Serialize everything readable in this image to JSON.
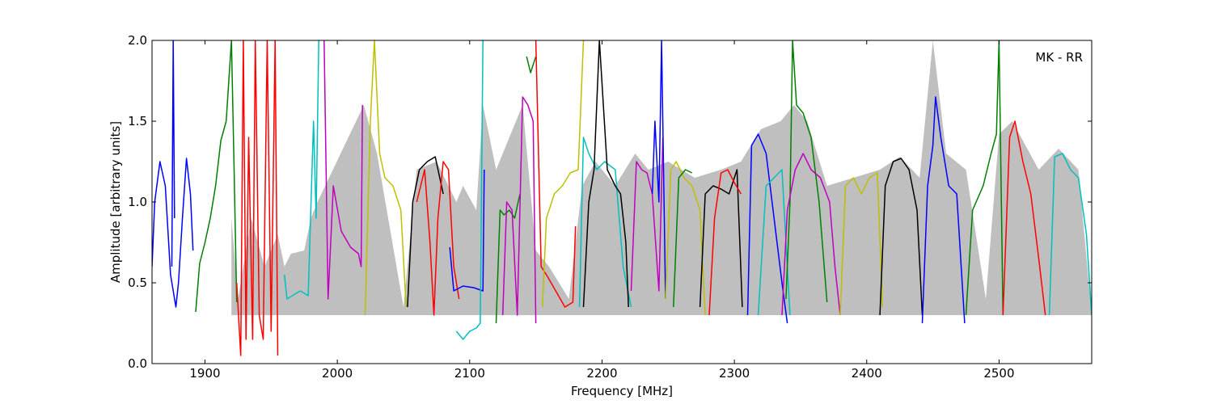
{
  "chart_data": {
    "type": "line",
    "title": "",
    "annotation": "MK - RR",
    "xlabel": "Frequency [MHz]",
    "ylabel": "Amplitude [arbitrary units]",
    "xlim": [
      1860,
      2570
    ],
    "ylim": [
      0.0,
      2.0
    ],
    "xticks": [
      1900,
      2000,
      2100,
      2200,
      2300,
      2400,
      2500
    ],
    "xtick_labels": [
      "1900",
      "2000",
      "2100",
      "2200",
      "2300",
      "2400",
      "2500"
    ],
    "yticks": [
      0.0,
      0.5,
      1.0,
      1.5,
      2.0
    ],
    "ytick_labels": [
      "0.0",
      "0.5",
      "1.0",
      "1.5",
      "2.0"
    ],
    "grid": false,
    "legend": "none",
    "background_band": {
      "color": "#bfbfbf",
      "points": [
        [
          1920,
          0.9
        ],
        [
          1925,
          0.4
        ],
        [
          1935,
          0.9
        ],
        [
          1945,
          0.6
        ],
        [
          1955,
          0.8
        ],
        [
          1960,
          0.6
        ],
        [
          1965,
          0.68
        ],
        [
          1975,
          0.7
        ],
        [
          1980,
          0.9
        ],
        [
          1985,
          1.0
        ],
        [
          2020,
          1.6
        ],
        [
          2030,
          1.3
        ],
        [
          2050,
          0.35
        ],
        [
          2060,
          1.2
        ],
        [
          2075,
          1.25
        ],
        [
          2090,
          1.0
        ],
        [
          2095,
          1.1
        ],
        [
          2105,
          0.95
        ],
        [
          2110,
          1.6
        ],
        [
          2120,
          1.2
        ],
        [
          2130,
          1.4
        ],
        [
          2140,
          1.6
        ],
        [
          2150,
          0.7
        ],
        [
          2160,
          0.6
        ],
        [
          2175,
          0.4
        ],
        [
          2185,
          1.1
        ],
        [
          2195,
          1.25
        ],
        [
          2210,
          1.1
        ],
        [
          2225,
          1.3
        ],
        [
          2235,
          1.2
        ],
        [
          2250,
          1.25
        ],
        [
          2260,
          1.2
        ],
        [
          2270,
          1.15
        ],
        [
          2290,
          1.2
        ],
        [
          2305,
          1.25
        ],
        [
          2320,
          1.45
        ],
        [
          2335,
          1.5
        ],
        [
          2345,
          1.6
        ],
        [
          2355,
          1.5
        ],
        [
          2370,
          1.1
        ],
        [
          2390,
          1.15
        ],
        [
          2410,
          1.2
        ],
        [
          2425,
          1.28
        ],
        [
          2440,
          1.15
        ],
        [
          2450,
          2.0
        ],
        [
          2460,
          1.3
        ],
        [
          2475,
          1.2
        ],
        [
          2490,
          0.4
        ],
        [
          2500,
          1.42
        ],
        [
          2510,
          1.5
        ],
        [
          2530,
          1.2
        ],
        [
          2545,
          1.33
        ],
        [
          2560,
          1.2
        ],
        [
          2570,
          0.3
        ]
      ]
    },
    "series": [
      {
        "color": "#0000ff",
        "x": [
          1860,
          1862,
          1866,
          1870,
          1874,
          1878,
          1880,
          1883,
          1886,
          1889,
          1891
        ],
        "y": [
          0.6,
          1.0,
          1.25,
          1.1,
          0.55,
          0.35,
          0.5,
          0.9,
          1.27,
          1.05,
          0.7
        ]
      },
      {
        "color": "#0000ff",
        "x": [
          1875,
          1876,
          1877
        ],
        "y": [
          0.6,
          2.0,
          0.9
        ]
      },
      {
        "color": "#008000",
        "x": [
          1893,
          1896,
          1900,
          1904,
          1908,
          1912,
          1916,
          1920,
          1922,
          1924
        ],
        "y": [
          0.32,
          0.62,
          0.75,
          0.9,
          1.1,
          1.38,
          1.5,
          2.0,
          1.2,
          0.38
        ]
      },
      {
        "color": "#ff0000",
        "x": [
          1924,
          1927,
          1929,
          1931,
          1933,
          1936,
          1938,
          1941,
          1944,
          1947,
          1950,
          1953,
          1955
        ],
        "y": [
          0.5,
          0.05,
          2.0,
          0.15,
          1.4,
          0.15,
          2.0,
          0.3,
          0.15,
          2.0,
          0.2,
          2.0,
          0.05
        ]
      },
      {
        "color": "#00bfbf",
        "x": [
          1960,
          1962,
          1966,
          1972,
          1978,
          1982,
          1984,
          1986
        ],
        "y": [
          0.55,
          0.4,
          0.42,
          0.45,
          0.42,
          1.5,
          0.9,
          2.0
        ]
      },
      {
        "color": "#bf00bf",
        "x": [
          1990,
          1993,
          1997,
          2003,
          2010,
          2016,
          2018,
          2019
        ],
        "y": [
          2.0,
          0.4,
          1.1,
          0.82,
          0.72,
          0.68,
          0.6,
          1.6
        ]
      },
      {
        "color": "#bfbf00",
        "x": [
          2021,
          2025,
          2028,
          2032,
          2036,
          2042,
          2048,
          2052
        ],
        "y": [
          0.3,
          1.5,
          2.0,
          1.3,
          1.15,
          1.1,
          0.95,
          0.35
        ]
      },
      {
        "color": "#000000",
        "x": [
          2053,
          2057,
          2062,
          2068,
          2074,
          2080
        ],
        "y": [
          0.35,
          1.0,
          1.2,
          1.25,
          1.28,
          1.05
        ]
      },
      {
        "color": "#ff0000",
        "x": [
          2060,
          2063,
          2066,
          2070,
          2073,
          2076,
          2080,
          2084,
          2088,
          2092
        ],
        "y": [
          1.0,
          1.1,
          1.2,
          0.75,
          0.3,
          0.9,
          1.25,
          1.2,
          0.6,
          0.4
        ]
      },
      {
        "color": "#0000ff",
        "x": [
          2085,
          2088,
          2095,
          2103,
          2110,
          2111
        ],
        "y": [
          0.72,
          0.45,
          0.48,
          0.47,
          0.45,
          1.2
        ]
      },
      {
        "color": "#00bfbf",
        "x": [
          2090,
          2095,
          2100,
          2105,
          2108,
          2110
        ],
        "y": [
          0.2,
          0.15,
          0.2,
          0.22,
          0.25,
          2.0
        ]
      },
      {
        "color": "#008000",
        "x": [
          2120,
          2123,
          2126,
          2130,
          2134,
          2138
        ],
        "y": [
          0.25,
          0.95,
          0.92,
          0.95,
          0.9,
          1.05
        ]
      },
      {
        "color": "#bf00bf",
        "x": [
          2125,
          2128,
          2132,
          2136,
          2140,
          2144,
          2148,
          2150
        ],
        "y": [
          0.3,
          1.0,
          0.95,
          0.3,
          1.65,
          1.6,
          1.5,
          0.25
        ]
      },
      {
        "color": "#008000",
        "x": [
          2143,
          2146,
          2150
        ],
        "y": [
          1.9,
          1.8,
          1.9
        ]
      },
      {
        "color": "#ff0000",
        "x": [
          2150,
          2154,
          2158,
          2165,
          2172,
          2178,
          2180
        ],
        "y": [
          2.0,
          0.6,
          0.55,
          0.45,
          0.35,
          0.38,
          0.85
        ]
      },
      {
        "color": "#bfbf00",
        "x": [
          2155,
          2158,
          2164,
          2170,
          2176,
          2182,
          2186
        ],
        "y": [
          0.35,
          0.9,
          1.05,
          1.1,
          1.18,
          1.2,
          2.0
        ]
      },
      {
        "color": "#00bfbf",
        "x": [
          2183,
          2186,
          2190,
          2196,
          2202,
          2210,
          2216,
          2222
        ],
        "y": [
          0.35,
          1.4,
          1.3,
          1.2,
          1.25,
          1.2,
          0.6,
          0.35
        ]
      },
      {
        "color": "#000000",
        "x": [
          2186,
          2190,
          2194,
          2198,
          2204,
          2210,
          2214,
          2218,
          2220
        ],
        "y": [
          0.35,
          1.0,
          1.2,
          2.0,
          1.2,
          1.1,
          1.05,
          0.75,
          0.35
        ]
      },
      {
        "color": "#bf00bf",
        "x": [
          2222,
          2226,
          2230,
          2234,
          2238,
          2243,
          2246
        ],
        "y": [
          0.45,
          1.25,
          1.2,
          1.18,
          1.05,
          0.45,
          1.4
        ]
      },
      {
        "color": "#0000ff",
        "x": [
          2238,
          2240,
          2243,
          2245,
          2248
        ],
        "y": [
          1.05,
          1.5,
          1.0,
          2.0,
          0.4
        ]
      },
      {
        "color": "#bfbf00",
        "x": [
          2248,
          2252,
          2256,
          2262,
          2268,
          2274,
          2278
        ],
        "y": [
          0.4,
          1.2,
          1.25,
          1.15,
          1.1,
          0.95,
          0.3
        ]
      },
      {
        "color": "#008000",
        "x": [
          2254,
          2258,
          2263,
          2268
        ],
        "y": [
          0.35,
          1.15,
          1.2,
          1.18
        ]
      },
      {
        "color": "#000000",
        "x": [
          2274,
          2278,
          2284,
          2290,
          2296,
          2302,
          2306
        ],
        "y": [
          0.35,
          1.05,
          1.1,
          1.08,
          1.05,
          1.2,
          0.35
        ]
      },
      {
        "color": "#ff0000",
        "x": [
          2281,
          2285,
          2290,
          2295,
          2300,
          2305
        ],
        "y": [
          0.3,
          0.9,
          1.18,
          1.2,
          1.12,
          1.05
        ]
      },
      {
        "color": "#0000ff",
        "x": [
          2310,
          2313,
          2318,
          2324,
          2330,
          2336,
          2340
        ],
        "y": [
          0.3,
          1.35,
          1.42,
          1.3,
          0.9,
          0.5,
          0.25
        ]
      },
      {
        "color": "#00bfbf",
        "x": [
          2318,
          2324,
          2330,
          2336,
          2342
        ],
        "y": [
          0.3,
          1.1,
          1.15,
          1.2,
          0.3
        ]
      },
      {
        "color": "#008000",
        "x": [
          2339,
          2342,
          2344,
          2347,
          2352,
          2358,
          2364,
          2370
        ],
        "y": [
          0.4,
          1.0,
          2.0,
          1.6,
          1.55,
          1.4,
          1.0,
          0.38
        ]
      },
      {
        "color": "#bf00bf",
        "x": [
          2336,
          2340,
          2346,
          2352,
          2358,
          2365,
          2372,
          2376,
          2380
        ],
        "y": [
          0.3,
          0.95,
          1.2,
          1.3,
          1.2,
          1.15,
          1.0,
          0.6,
          0.3
        ]
      },
      {
        "color": "#bfbf00",
        "x": [
          2380,
          2384,
          2390,
          2396,
          2402,
          2408,
          2412
        ],
        "y": [
          0.3,
          1.1,
          1.15,
          1.05,
          1.15,
          1.18,
          0.35
        ]
      },
      {
        "color": "#000000",
        "x": [
          2410,
          2414,
          2420,
          2426,
          2432,
          2438,
          2442
        ],
        "y": [
          0.3,
          1.1,
          1.25,
          1.27,
          1.2,
          0.95,
          0.3
        ]
      },
      {
        "color": "#0000ff",
        "x": [
          2442,
          2446,
          2450,
          2452,
          2456,
          2462,
          2468,
          2474
        ],
        "y": [
          0.25,
          1.1,
          1.35,
          1.65,
          1.4,
          1.1,
          1.05,
          0.25
        ]
      },
      {
        "color": "#008000",
        "x": [
          2475,
          2480,
          2488,
          2494,
          2498,
          2500,
          2503
        ],
        "y": [
          0.3,
          0.95,
          1.1,
          1.3,
          1.42,
          2.0,
          0.3
        ]
      },
      {
        "color": "#ff0000",
        "x": [
          2503,
          2508,
          2512,
          2518,
          2524,
          2530,
          2535
        ],
        "y": [
          0.3,
          1.4,
          1.5,
          1.25,
          1.05,
          0.65,
          0.3
        ]
      },
      {
        "color": "#00bfbf",
        "x": [
          2538,
          2542,
          2548,
          2554,
          2560,
          2566,
          2570
        ],
        "y": [
          0.3,
          1.28,
          1.3,
          1.2,
          1.15,
          0.8,
          0.3
        ]
      }
    ]
  }
}
